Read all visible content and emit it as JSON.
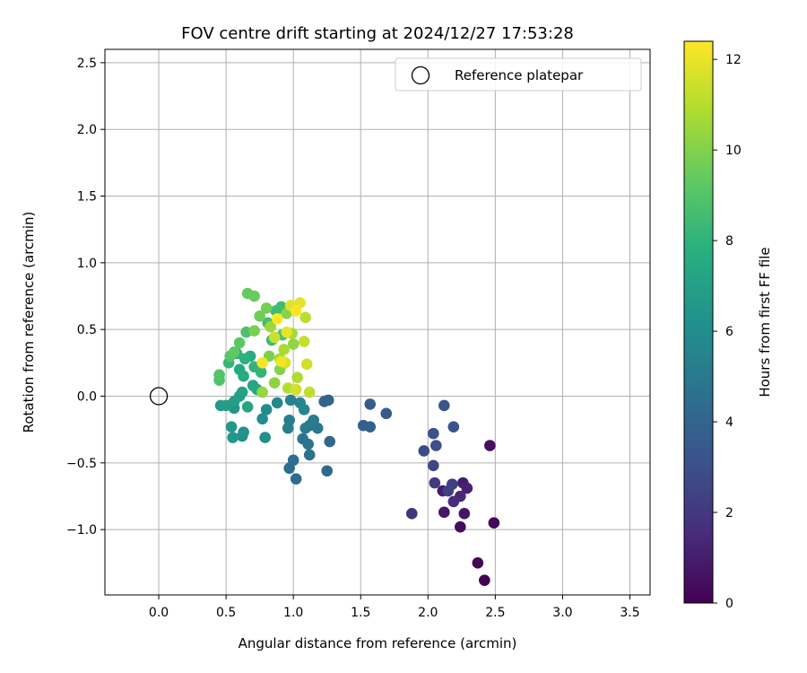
{
  "chart_data": {
    "type": "scatter",
    "title": "FOV centre drift starting at 2024/12/27 17:53:28",
    "xlabel": "Angular distance from reference (arcmin)",
    "ylabel": "Rotation from reference (arcmin)",
    "xlim": [
      -0.4,
      3.65
    ],
    "ylim": [
      -1.49,
      2.6
    ],
    "x_ticks": [
      0.0,
      0.5,
      1.0,
      1.5,
      2.0,
      2.5,
      3.0,
      3.5
    ],
    "x_tick_labels": [
      "0.0",
      "0.5",
      "1.0",
      "1.5",
      "2.0",
      "2.5",
      "3.0",
      "3.5"
    ],
    "y_ticks": [
      -1.0,
      -0.5,
      0.0,
      0.5,
      1.0,
      1.5,
      2.0,
      2.5
    ],
    "y_tick_labels": [
      "−1.0",
      "−0.5",
      "0.0",
      "0.5",
      "1.0",
      "1.5",
      "2.0",
      "2.5"
    ],
    "grid": true,
    "legend": {
      "placement": "top-right",
      "entries": [
        "Reference platepar"
      ]
    },
    "reference_point": {
      "x": 0.0,
      "y": 0.0
    },
    "colorbar": {
      "label": "Hours from first FF file",
      "colormap": "viridis",
      "range": [
        0,
        12.4
      ],
      "ticks": [
        0,
        2,
        4,
        6,
        8,
        10,
        12
      ],
      "tick_labels": [
        "0",
        "2",
        "4",
        "6",
        "8",
        "10",
        "12"
      ]
    },
    "series": [
      {
        "points": [
          [
            2.42,
            -1.38,
            0.0
          ],
          [
            2.37,
            -1.25,
            0.1
          ],
          [
            2.49,
            -0.95,
            0.2
          ],
          [
            2.24,
            -0.98,
            0.4
          ],
          [
            2.46,
            -0.37,
            0.5
          ],
          [
            2.27,
            -0.88,
            0.7
          ],
          [
            2.12,
            -0.87,
            0.8
          ],
          [
            2.11,
            -0.71,
            0.9
          ],
          [
            2.26,
            -0.65,
            1.0
          ],
          [
            2.29,
            -0.69,
            1.2
          ],
          [
            2.24,
            -0.75,
            1.4
          ],
          [
            2.19,
            -0.79,
            1.6
          ],
          [
            1.88,
            -0.88,
            1.8
          ],
          [
            2.05,
            -0.65,
            2.0
          ],
          [
            2.18,
            -0.66,
            2.2
          ],
          [
            2.15,
            -0.71,
            2.4
          ],
          [
            2.04,
            -0.52,
            2.6
          ],
          [
            1.97,
            -0.41,
            2.8
          ],
          [
            2.06,
            -0.37,
            3.0
          ],
          [
            2.04,
            -0.28,
            3.1
          ],
          [
            2.19,
            -0.23,
            3.2
          ],
          [
            2.12,
            -0.07,
            3.3
          ],
          [
            1.69,
            -0.13,
            3.5
          ],
          [
            1.57,
            -0.06,
            3.6
          ],
          [
            1.57,
            -0.23,
            3.7
          ],
          [
            1.52,
            -0.22,
            3.8
          ],
          [
            1.26,
            -0.03,
            3.9
          ],
          [
            1.23,
            -0.04,
            4.0
          ],
          [
            1.27,
            -0.34,
            4.1
          ],
          [
            1.25,
            -0.56,
            4.2
          ],
          [
            1.02,
            -0.62,
            4.3
          ],
          [
            0.97,
            -0.54,
            4.4
          ],
          [
            1.0,
            -0.48,
            4.5
          ],
          [
            1.12,
            -0.44,
            4.6
          ],
          [
            1.11,
            -0.36,
            4.7
          ],
          [
            1.07,
            -0.32,
            4.8
          ],
          [
            1.12,
            -0.22,
            4.9
          ],
          [
            1.18,
            -0.24,
            5.0
          ],
          [
            1.15,
            -0.18,
            5.1
          ],
          [
            1.09,
            -0.24,
            5.2
          ],
          [
            0.97,
            -0.18,
            5.3
          ],
          [
            0.96,
            -0.24,
            5.4
          ],
          [
            0.98,
            -0.03,
            5.5
          ],
          [
            1.05,
            -0.05,
            5.6
          ],
          [
            1.08,
            -0.1,
            5.7
          ],
          [
            0.88,
            -0.05,
            5.8
          ],
          [
            0.8,
            -0.1,
            5.9
          ],
          [
            0.77,
            -0.17,
            6.0
          ],
          [
            0.79,
            -0.31,
            6.1
          ],
          [
            0.63,
            -0.27,
            6.2
          ],
          [
            0.62,
            -0.3,
            6.3
          ],
          [
            0.56,
            -0.09,
            6.4
          ],
          [
            0.55,
            -0.31,
            6.5
          ],
          [
            0.54,
            -0.23,
            6.6
          ],
          [
            0.46,
            -0.07,
            6.7
          ],
          [
            0.5,
            -0.07,
            6.8
          ],
          [
            0.56,
            -0.04,
            6.9
          ],
          [
            0.6,
            0.0,
            7.0
          ],
          [
            0.62,
            0.03,
            7.1
          ],
          [
            0.66,
            -0.08,
            7.2
          ],
          [
            0.7,
            0.08,
            7.3
          ],
          [
            0.73,
            0.05,
            7.4
          ],
          [
            0.6,
            0.2,
            7.5
          ],
          [
            0.63,
            0.15,
            7.6
          ],
          [
            0.68,
            0.3,
            7.7
          ],
          [
            0.58,
            0.32,
            7.8
          ],
          [
            0.64,
            0.28,
            7.9
          ],
          [
            0.71,
            0.22,
            8.0
          ],
          [
            0.76,
            0.18,
            8.1
          ],
          [
            0.52,
            0.25,
            8.2
          ],
          [
            0.84,
            0.42,
            8.3
          ],
          [
            0.87,
            0.64,
            8.4
          ],
          [
            0.91,
            0.67,
            8.5
          ],
          [
            0.81,
            0.55,
            8.6
          ],
          [
            0.92,
            0.46,
            8.7
          ],
          [
            0.65,
            0.48,
            8.8
          ],
          [
            0.45,
            0.12,
            8.9
          ],
          [
            0.45,
            0.16,
            9.0
          ],
          [
            0.53,
            0.3,
            9.1
          ],
          [
            0.6,
            0.4,
            9.2
          ],
          [
            0.56,
            0.33,
            9.3
          ],
          [
            0.66,
            0.77,
            9.4
          ],
          [
            0.71,
            0.75,
            9.5
          ],
          [
            0.75,
            0.6,
            9.6
          ],
          [
            0.8,
            0.66,
            9.7
          ],
          [
            0.71,
            0.49,
            9.8
          ],
          [
            0.82,
            0.3,
            9.9
          ],
          [
            0.9,
            0.2,
            10.0
          ],
          [
            0.95,
            0.62,
            10.1
          ],
          [
            0.86,
            0.1,
            10.2
          ],
          [
            1.0,
            0.39,
            10.3
          ],
          [
            0.77,
            0.03,
            10.4
          ],
          [
            0.83,
            0.52,
            10.5
          ],
          [
            0.9,
            0.28,
            10.6
          ],
          [
            0.99,
            0.47,
            10.7
          ],
          [
            0.93,
            0.35,
            10.8
          ],
          [
            1.03,
            0.14,
            10.9
          ],
          [
            0.96,
            0.06,
            11.0
          ],
          [
            1.09,
            0.59,
            11.1
          ],
          [
            1.12,
            0.03,
            11.2
          ],
          [
            1.08,
            0.41,
            11.3
          ],
          [
            0.86,
            0.44,
            11.4
          ],
          [
            1.1,
            0.24,
            11.5
          ],
          [
            1.02,
            0.05,
            11.6
          ],
          [
            0.94,
            0.25,
            11.7
          ],
          [
            0.98,
            0.68,
            11.8
          ],
          [
            1.05,
            0.7,
            11.9
          ],
          [
            0.95,
            0.48,
            12.0
          ],
          [
            0.91,
            0.26,
            12.1
          ],
          [
            0.77,
            0.25,
            12.2
          ],
          [
            1.02,
            0.64,
            12.3
          ],
          [
            0.88,
            0.58,
            12.4
          ]
        ]
      }
    ]
  }
}
